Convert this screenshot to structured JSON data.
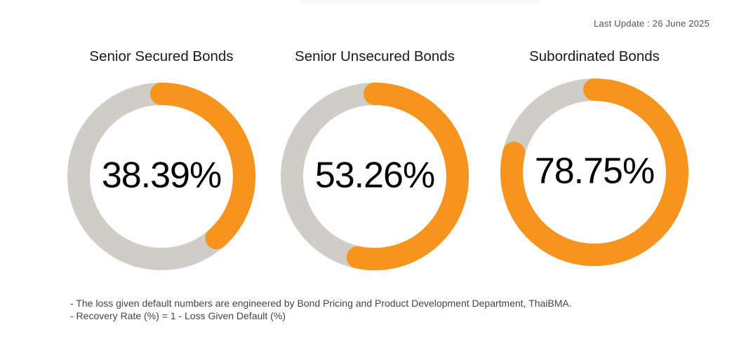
{
  "last_update": "Last Update : 26 June 2025",
  "colors": {
    "accent": "#f7941d",
    "track": "#d0cdc9",
    "text": "#000000"
  },
  "chart_data": [
    {
      "type": "pie",
      "title": "Senior Secured Bonds",
      "value": 38.39,
      "label": "38.39%",
      "max": 100
    },
    {
      "type": "pie",
      "title": "Senior Unsecured Bonds",
      "value": 53.26,
      "label": "53.26%",
      "max": 100
    },
    {
      "type": "pie",
      "title": "Subordinated Bonds",
      "value": 78.75,
      "label": "78.75%",
      "max": 100
    }
  ],
  "notes": [
    "- The loss given default numbers are engineered by Bond Pricing and Product Development Department, ThaiBMA.",
    "- Recovery Rate (%) = 1 - Loss Given Default (%)"
  ]
}
